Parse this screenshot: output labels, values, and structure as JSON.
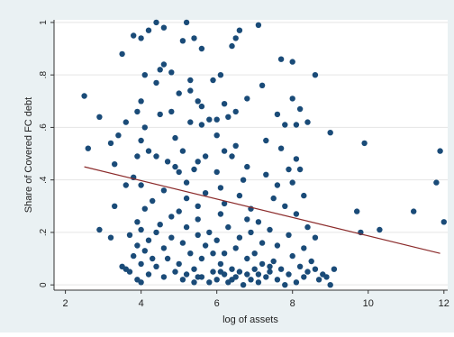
{
  "chart_data": {
    "type": "scatter",
    "title": "",
    "xlabel": "log of assets",
    "ylabel": "Share of Covered FC debt",
    "xlim": [
      1.7,
      12.1
    ],
    "ylim": [
      -0.02,
      1.01
    ],
    "xticks": [
      2,
      4,
      6,
      8,
      10,
      12
    ],
    "yticks": [
      0,
      0.2,
      0.4,
      0.6,
      0.8,
      1
    ],
    "ytick_labels": [
      "0",
      ".2",
      ".4",
      ".6",
      ".8",
      "1"
    ],
    "grid": "horizontal",
    "legend": "none",
    "colors": {
      "points": "#1a4b78",
      "fit_line": "#8b2b2b",
      "grid": "#e5e5e5",
      "plot_bg": "#ffffff",
      "frame_bg": "#eaf1f3"
    },
    "fit_line": {
      "x": [
        2.5,
        11.9
      ],
      "y": [
        0.45,
        0.12
      ]
    },
    "points": [
      [
        4.4,
        1.0
      ],
      [
        4.6,
        0.98
      ],
      [
        5.2,
        1.0
      ],
      [
        7.1,
        0.99
      ],
      [
        4.2,
        0.97
      ],
      [
        3.8,
        0.95
      ],
      [
        4.0,
        0.94
      ],
      [
        5.1,
        0.93
      ],
      [
        5.4,
        0.94
      ],
      [
        6.5,
        0.94
      ],
      [
        6.6,
        0.97
      ],
      [
        5.6,
        0.9
      ],
      [
        6.4,
        0.91
      ],
      [
        3.5,
        0.88
      ],
      [
        7.7,
        0.86
      ],
      [
        8.0,
        0.85
      ],
      [
        4.5,
        0.82
      ],
      [
        4.6,
        0.84
      ],
      [
        4.1,
        0.8
      ],
      [
        4.8,
        0.81
      ],
      [
        6.1,
        0.8
      ],
      [
        8.6,
        0.8
      ],
      [
        5.3,
        0.78
      ],
      [
        5.9,
        0.78
      ],
      [
        4.4,
        0.77
      ],
      [
        5.0,
        0.73
      ],
      [
        5.3,
        0.74
      ],
      [
        7.2,
        0.76
      ],
      [
        2.5,
        0.72
      ],
      [
        6.8,
        0.71
      ],
      [
        8.0,
        0.71
      ],
      [
        5.5,
        0.7
      ],
      [
        4.0,
        0.7
      ],
      [
        6.2,
        0.69
      ],
      [
        5.6,
        0.68
      ],
      [
        8.2,
        0.67
      ],
      [
        3.9,
        0.66
      ],
      [
        4.5,
        0.65
      ],
      [
        4.8,
        0.66
      ],
      [
        6.3,
        0.64
      ],
      [
        6.5,
        0.66
      ],
      [
        7.6,
        0.65
      ],
      [
        6.0,
        0.63
      ],
      [
        5.3,
        0.62
      ],
      [
        2.9,
        0.64
      ],
      [
        5.6,
        0.61
      ],
      [
        5.8,
        0.63
      ],
      [
        4.1,
        0.6
      ],
      [
        3.6,
        0.62
      ],
      [
        7.8,
        0.61
      ],
      [
        8.1,
        0.61
      ],
      [
        8.4,
        0.62
      ],
      [
        3.4,
        0.57
      ],
      [
        4.9,
        0.56
      ],
      [
        4.0,
        0.55
      ],
      [
        7.3,
        0.55
      ],
      [
        9.0,
        0.58
      ],
      [
        6.0,
        0.57
      ],
      [
        6.5,
        0.53
      ],
      [
        3.2,
        0.54
      ],
      [
        5.1,
        0.51
      ],
      [
        7.7,
        0.52
      ],
      [
        6.2,
        0.51
      ],
      [
        4.2,
        0.51
      ],
      [
        2.6,
        0.52
      ],
      [
        3.9,
        0.49
      ],
      [
        4.4,
        0.49
      ],
      [
        5.7,
        0.49
      ],
      [
        6.4,
        0.49
      ],
      [
        8.1,
        0.48
      ],
      [
        3.3,
        0.46
      ],
      [
        4.7,
        0.47
      ],
      [
        4.9,
        0.45
      ],
      [
        5.5,
        0.47
      ],
      [
        6.8,
        0.45
      ],
      [
        7.9,
        0.44
      ],
      [
        8.2,
        0.44
      ],
      [
        5.0,
        0.43
      ],
      [
        6.0,
        0.43
      ],
      [
        7.3,
        0.42
      ],
      [
        5.4,
        0.44
      ],
      [
        9.9,
        0.54
      ],
      [
        11.9,
        0.51
      ],
      [
        3.8,
        0.41
      ],
      [
        6.7,
        0.4
      ],
      [
        4.0,
        0.38
      ],
      [
        5.2,
        0.39
      ],
      [
        7.6,
        0.38
      ],
      [
        3.6,
        0.38
      ],
      [
        6.1,
        0.37
      ],
      [
        8.0,
        0.39
      ],
      [
        5.7,
        0.35
      ],
      [
        4.6,
        0.36
      ],
      [
        6.6,
        0.34
      ],
      [
        7.5,
        0.33
      ],
      [
        8.3,
        0.34
      ],
      [
        4.3,
        0.32
      ],
      [
        5.2,
        0.33
      ],
      [
        6.2,
        0.31
      ],
      [
        11.8,
        0.39
      ],
      [
        3.3,
        0.3
      ],
      [
        4.1,
        0.29
      ],
      [
        5.5,
        0.3
      ],
      [
        6.9,
        0.29
      ],
      [
        7.8,
        0.3
      ],
      [
        5.0,
        0.28
      ],
      [
        4.8,
        0.26
      ],
      [
        6.1,
        0.27
      ],
      [
        8.1,
        0.27
      ],
      [
        5.5,
        0.25
      ],
      [
        6.8,
        0.25
      ],
      [
        3.9,
        0.24
      ],
      [
        7.1,
        0.24
      ],
      [
        11.2,
        0.28
      ],
      [
        9.7,
        0.28
      ],
      [
        12.0,
        0.24
      ],
      [
        4.5,
        0.23
      ],
      [
        5.2,
        0.22
      ],
      [
        6.3,
        0.22
      ],
      [
        7.4,
        0.21
      ],
      [
        8.4,
        0.22
      ],
      [
        4.0,
        0.21
      ],
      [
        4.4,
        0.2
      ],
      [
        5.8,
        0.2
      ],
      [
        6.9,
        0.2
      ],
      [
        2.9,
        0.21
      ],
      [
        9.8,
        0.2
      ],
      [
        10.3,
        0.21
      ],
      [
        3.7,
        0.19
      ],
      [
        4.8,
        0.18
      ],
      [
        5.5,
        0.19
      ],
      [
        6.6,
        0.18
      ],
      [
        7.9,
        0.19
      ],
      [
        8.6,
        0.18
      ],
      [
        3.2,
        0.18
      ],
      [
        4.2,
        0.17
      ],
      [
        5.1,
        0.16
      ],
      [
        6.0,
        0.17
      ],
      [
        7.2,
        0.16
      ],
      [
        3.9,
        0.15
      ],
      [
        4.6,
        0.14
      ],
      [
        5.7,
        0.15
      ],
      [
        6.5,
        0.14
      ],
      [
        7.6,
        0.15
      ],
      [
        8.3,
        0.14
      ],
      [
        4.1,
        0.13
      ],
      [
        5.3,
        0.12
      ],
      [
        6.2,
        0.12
      ],
      [
        7.0,
        0.12
      ],
      [
        8.0,
        0.11
      ],
      [
        3.8,
        0.11
      ],
      [
        4.7,
        0.1
      ],
      [
        5.6,
        0.1
      ],
      [
        6.8,
        0.1
      ],
      [
        7.5,
        0.09
      ],
      [
        8.5,
        0.09
      ],
      [
        4.0,
        0.08
      ],
      [
        5.0,
        0.08
      ],
      [
        6.1,
        0.08
      ],
      [
        7.2,
        0.08
      ],
      [
        8.2,
        0.07
      ],
      [
        3.5,
        0.07
      ],
      [
        3.6,
        0.06
      ],
      [
        4.4,
        0.07
      ],
      [
        5.4,
        0.06
      ],
      [
        6.4,
        0.06
      ],
      [
        7.0,
        0.06
      ],
      [
        7.7,
        0.06
      ],
      [
        8.6,
        0.06
      ],
      [
        9.1,
        0.06
      ],
      [
        3.7,
        0.05
      ],
      [
        4.9,
        0.05
      ],
      [
        5.9,
        0.05
      ],
      [
        6.6,
        0.05
      ],
      [
        7.4,
        0.05
      ],
      [
        8.4,
        0.05
      ],
      [
        4.2,
        0.04
      ],
      [
        5.2,
        0.04
      ],
      [
        6.2,
        0.04
      ],
      [
        6.8,
        0.04
      ],
      [
        7.9,
        0.04
      ],
      [
        8.8,
        0.04
      ],
      [
        4.6,
        0.03
      ],
      [
        5.6,
        0.03
      ],
      [
        6.5,
        0.03
      ],
      [
        7.3,
        0.03
      ],
      [
        8.3,
        0.03
      ],
      [
        5.1,
        0.02
      ],
      [
        6.0,
        0.02
      ],
      [
        6.9,
        0.02
      ],
      [
        7.6,
        0.02
      ],
      [
        8.7,
        0.02
      ],
      [
        4.0,
        0.01
      ],
      [
        5.4,
        0.01
      ],
      [
        6.3,
        0.01
      ],
      [
        7.1,
        0.01
      ],
      [
        8.1,
        0.01
      ],
      [
        9.0,
        0.0
      ],
      [
        3.9,
        0.02
      ],
      [
        5.8,
        0.01
      ],
      [
        6.7,
        0.0
      ],
      [
        7.8,
        0.0
      ],
      [
        8.9,
        0.03
      ],
      [
        6.4,
        0.02
      ],
      [
        5.5,
        0.03
      ],
      [
        6.1,
        0.05
      ],
      [
        7.1,
        0.04
      ],
      [
        7.4,
        0.07
      ],
      [
        4.3,
        0.1
      ],
      [
        5.9,
        0.12
      ]
    ]
  }
}
